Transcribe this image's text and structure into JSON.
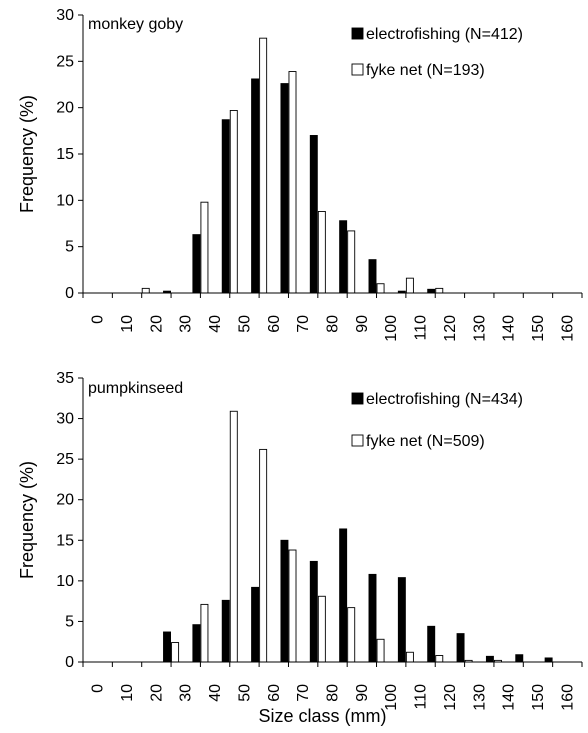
{
  "chart_data": [
    {
      "type": "bar",
      "title": "monkey goby",
      "xlabel": "",
      "ylabel": "Frequency (%)",
      "ylim": [
        0,
        30
      ],
      "yticks": [
        0,
        5,
        10,
        15,
        20,
        25,
        30
      ],
      "categories": [
        "0",
        "10",
        "20",
        "30",
        "40",
        "50",
        "60",
        "70",
        "80",
        "90",
        "100",
        "110",
        "120",
        "130",
        "140",
        "150",
        "160"
      ],
      "legend_position": "top-right",
      "series": [
        {
          "name": "electrofishing (N=412)",
          "fill": "#000000",
          "values": [
            0,
            0,
            0.2,
            6.3,
            18.7,
            23.1,
            22.6,
            17.0,
            7.8,
            3.6,
            0.2,
            0.4,
            0,
            0,
            0,
            0,
            0
          ]
        },
        {
          "name": "fyke net (N=193)",
          "fill": "#ffffff",
          "values": [
            0,
            0.5,
            0,
            9.8,
            19.7,
            27.5,
            23.9,
            8.8,
            6.7,
            1.0,
            1.6,
            0.5,
            0,
            0,
            0,
            0,
            0
          ]
        }
      ]
    },
    {
      "type": "bar",
      "title": "pumpkinseed",
      "xlabel": "Size class (mm)",
      "ylabel": "Frequency (%)",
      "ylim": [
        0,
        35
      ],
      "yticks": [
        0,
        5,
        10,
        15,
        20,
        25,
        30,
        35
      ],
      "categories": [
        "0",
        "10",
        "20",
        "30",
        "40",
        "50",
        "60",
        "70",
        "80",
        "90",
        "100",
        "110",
        "120",
        "130",
        "140",
        "150",
        "160"
      ],
      "legend_position": "top-right",
      "series": [
        {
          "name": "electrofishing (N=434)",
          "fill": "#000000",
          "values": [
            0,
            0,
            3.7,
            4.6,
            7.6,
            9.2,
            15.0,
            12.4,
            16.4,
            10.8,
            10.4,
            4.4,
            3.5,
            0.7,
            0.9,
            0.5,
            0
          ]
        },
        {
          "name": "fyke net (N=509)",
          "fill": "#ffffff",
          "values": [
            0,
            0,
            2.4,
            7.1,
            30.9,
            26.2,
            13.8,
            8.1,
            6.7,
            2.8,
            1.2,
            0.8,
            0.2,
            0.2,
            0,
            0,
            0
          ]
        }
      ]
    }
  ]
}
